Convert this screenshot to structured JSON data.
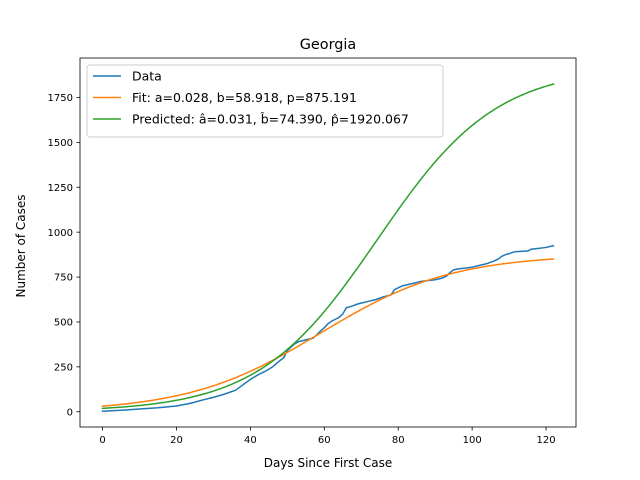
{
  "chart_data": {
    "type": "line",
    "title": "Georgia",
    "xlabel": "Days Since First Case",
    "ylabel": "Number of Cases",
    "xlim": [
      -6.1,
      128.1
    ],
    "ylim": [
      -85,
      1970
    ],
    "x_ticks": [
      0,
      20,
      40,
      60,
      80,
      100,
      120
    ],
    "y_ticks": [
      0,
      250,
      500,
      750,
      1000,
      1250,
      1500,
      1750
    ],
    "grid": false,
    "legend_position": "top-left",
    "series": [
      {
        "name": "Data",
        "color": "#1f77b4",
        "x": [
          0,
          5,
          10,
          15,
          20,
          24,
          27,
          30,
          33,
          36,
          38,
          40,
          42,
          44,
          46,
          48,
          49,
          50,
          51,
          52,
          53,
          55,
          57,
          58,
          59,
          60,
          61,
          62,
          63,
          64,
          65,
          66,
          67,
          68,
          69,
          70,
          72,
          74,
          76,
          78,
          79,
          80,
          81,
          82,
          84,
          86,
          88,
          90,
          92,
          93,
          94,
          95,
          96,
          98,
          100,
          102,
          104,
          106,
          107,
          108,
          109,
          110,
          111,
          112,
          115,
          116,
          118,
          120,
          122
        ],
        "values": [
          3,
          8,
          15,
          22,
          32,
          48,
          65,
          80,
          98,
          120,
          150,
          180,
          205,
          225,
          250,
          285,
          300,
          340,
          360,
          378,
          390,
          400,
          410,
          430,
          450,
          468,
          490,
          505,
          515,
          525,
          545,
          580,
          585,
          592,
          600,
          605,
          615,
          625,
          640,
          650,
          680,
          690,
          700,
          705,
          715,
          725,
          730,
          735,
          745,
          755,
          775,
          790,
          795,
          800,
          805,
          815,
          825,
          840,
          850,
          865,
          875,
          880,
          888,
          892,
          895,
          905,
          910,
          915,
          925
        ]
      },
      {
        "name": "Fit: a=0.028, b=58.918, p=875.191",
        "color": "#ff7f0e",
        "function": "logistic",
        "params": {
          "a": 0.028,
          "b": 58.918,
          "p": 875.191
        }
      },
      {
        "name": "Predicted: â=0.031, b̂=74.390, p̂=1920.067",
        "color": "#2ca02c",
        "function": "logistic",
        "params": {
          "a": 0.031,
          "b": 74.39,
          "p": 1920.067
        }
      }
    ]
  }
}
